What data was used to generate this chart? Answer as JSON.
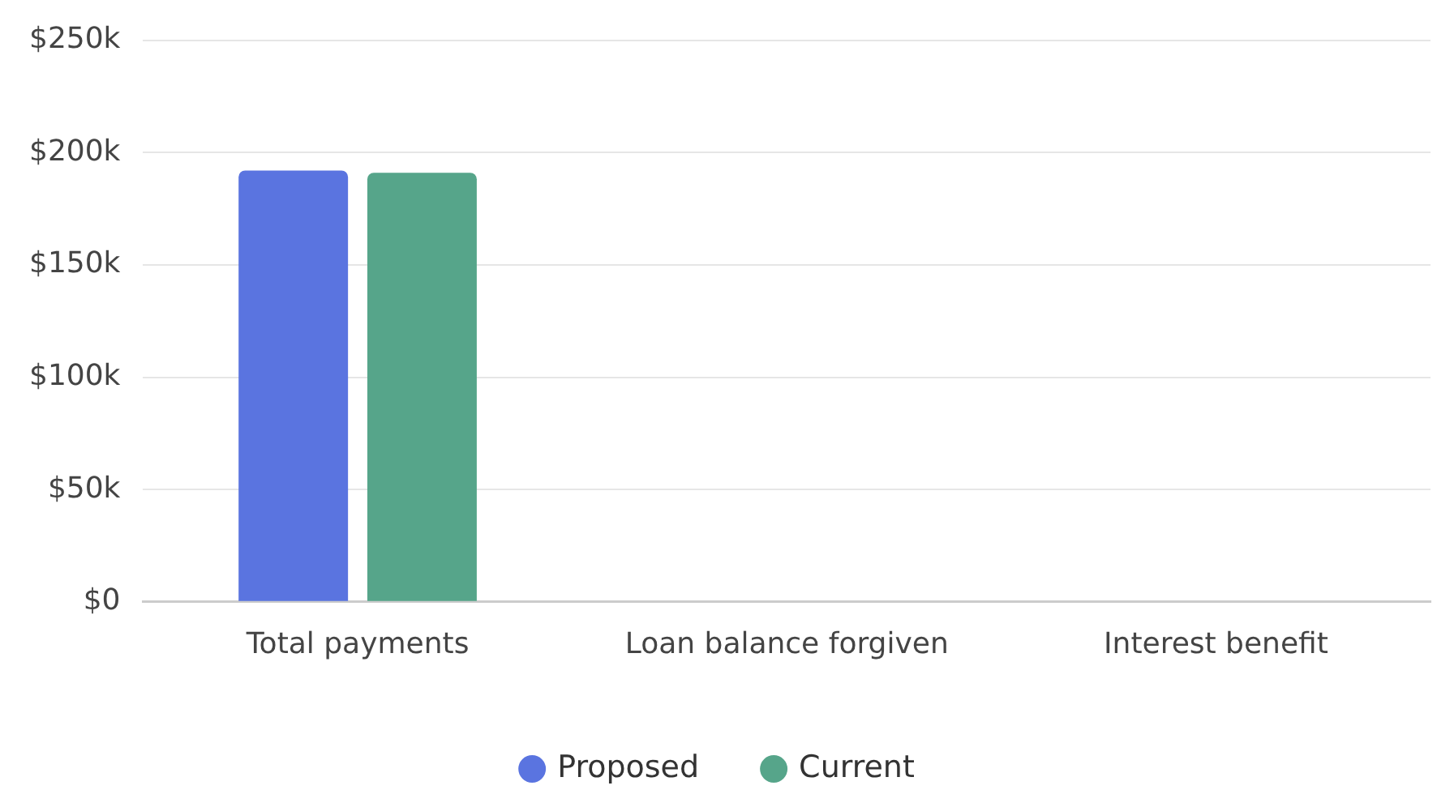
{
  "chart_data": {
    "type": "bar",
    "categories": [
      "Total payments",
      "Loan balance forgiven",
      "Interest benefit"
    ],
    "series": [
      {
        "name": "Proposed",
        "color": "#5a74e0",
        "values": [
          192000,
          0,
          0
        ]
      },
      {
        "name": "Current",
        "color": "#56a58a",
        "values": [
          191000,
          0,
          0
        ]
      }
    ],
    "ylim": [
      0,
      250000
    ],
    "yticks": [
      {
        "value": 0,
        "label": "$0"
      },
      {
        "value": 50000,
        "label": "$50k"
      },
      {
        "value": 100000,
        "label": "$100k"
      },
      {
        "value": 150000,
        "label": "$150k"
      },
      {
        "value": 200000,
        "label": "$200k"
      },
      {
        "value": 250000,
        "label": "$250k"
      }
    ],
    "grid": "y",
    "legend": "bottom"
  }
}
